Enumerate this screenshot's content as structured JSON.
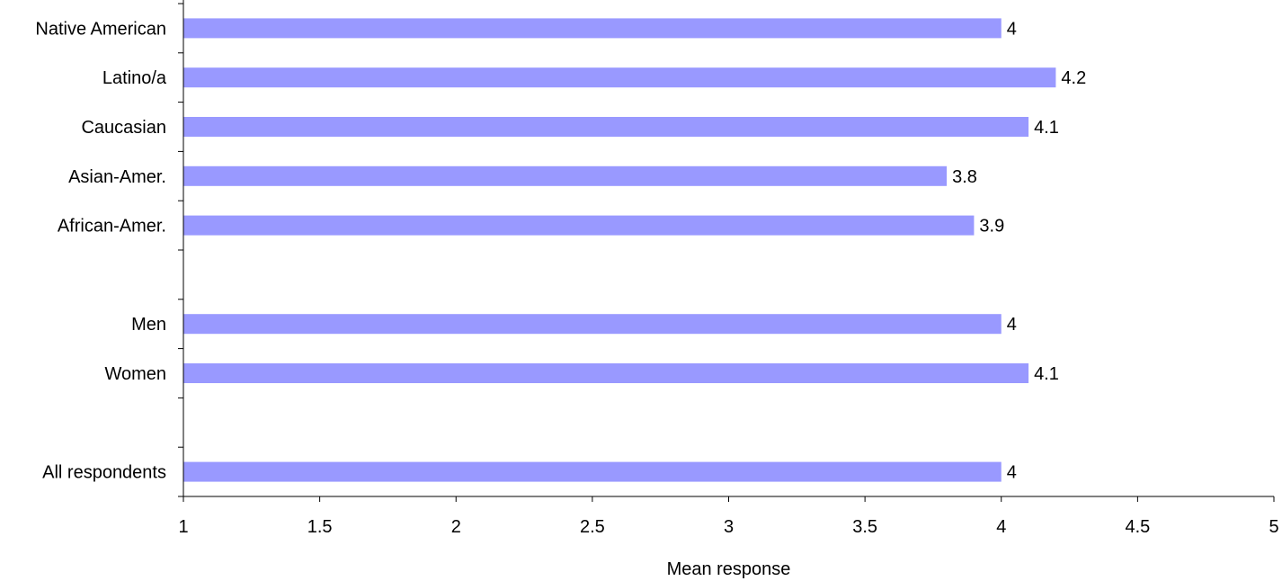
{
  "chart_data": {
    "type": "bar",
    "orientation": "horizontal",
    "title": "",
    "xlabel": "Mean response",
    "ylabel": "",
    "xlim": [
      1,
      5
    ],
    "xticks": [
      1,
      1.5,
      2,
      2.5,
      3,
      3.5,
      4,
      4.5,
      5
    ],
    "xtick_labels": [
      "1",
      "1.5",
      "2",
      "2.5",
      "3",
      "3.5",
      "4",
      "4.5",
      "5"
    ],
    "grid": false,
    "legend": "none",
    "bar_color": "#9999ff",
    "categories": [
      "Native American",
      "Latino/a",
      "Caucasian",
      "Asian-Amer.",
      "African-Amer.",
      "",
      "Men",
      "Women",
      "",
      "All respondents"
    ],
    "values": [
      4,
      4.2,
      4.1,
      3.8,
      3.9,
      null,
      4,
      4.1,
      null,
      4
    ],
    "value_labels": [
      "4",
      "4.2",
      "4.1",
      "3.8",
      "3.9",
      "",
      "4",
      "4.1",
      "",
      "4"
    ]
  }
}
